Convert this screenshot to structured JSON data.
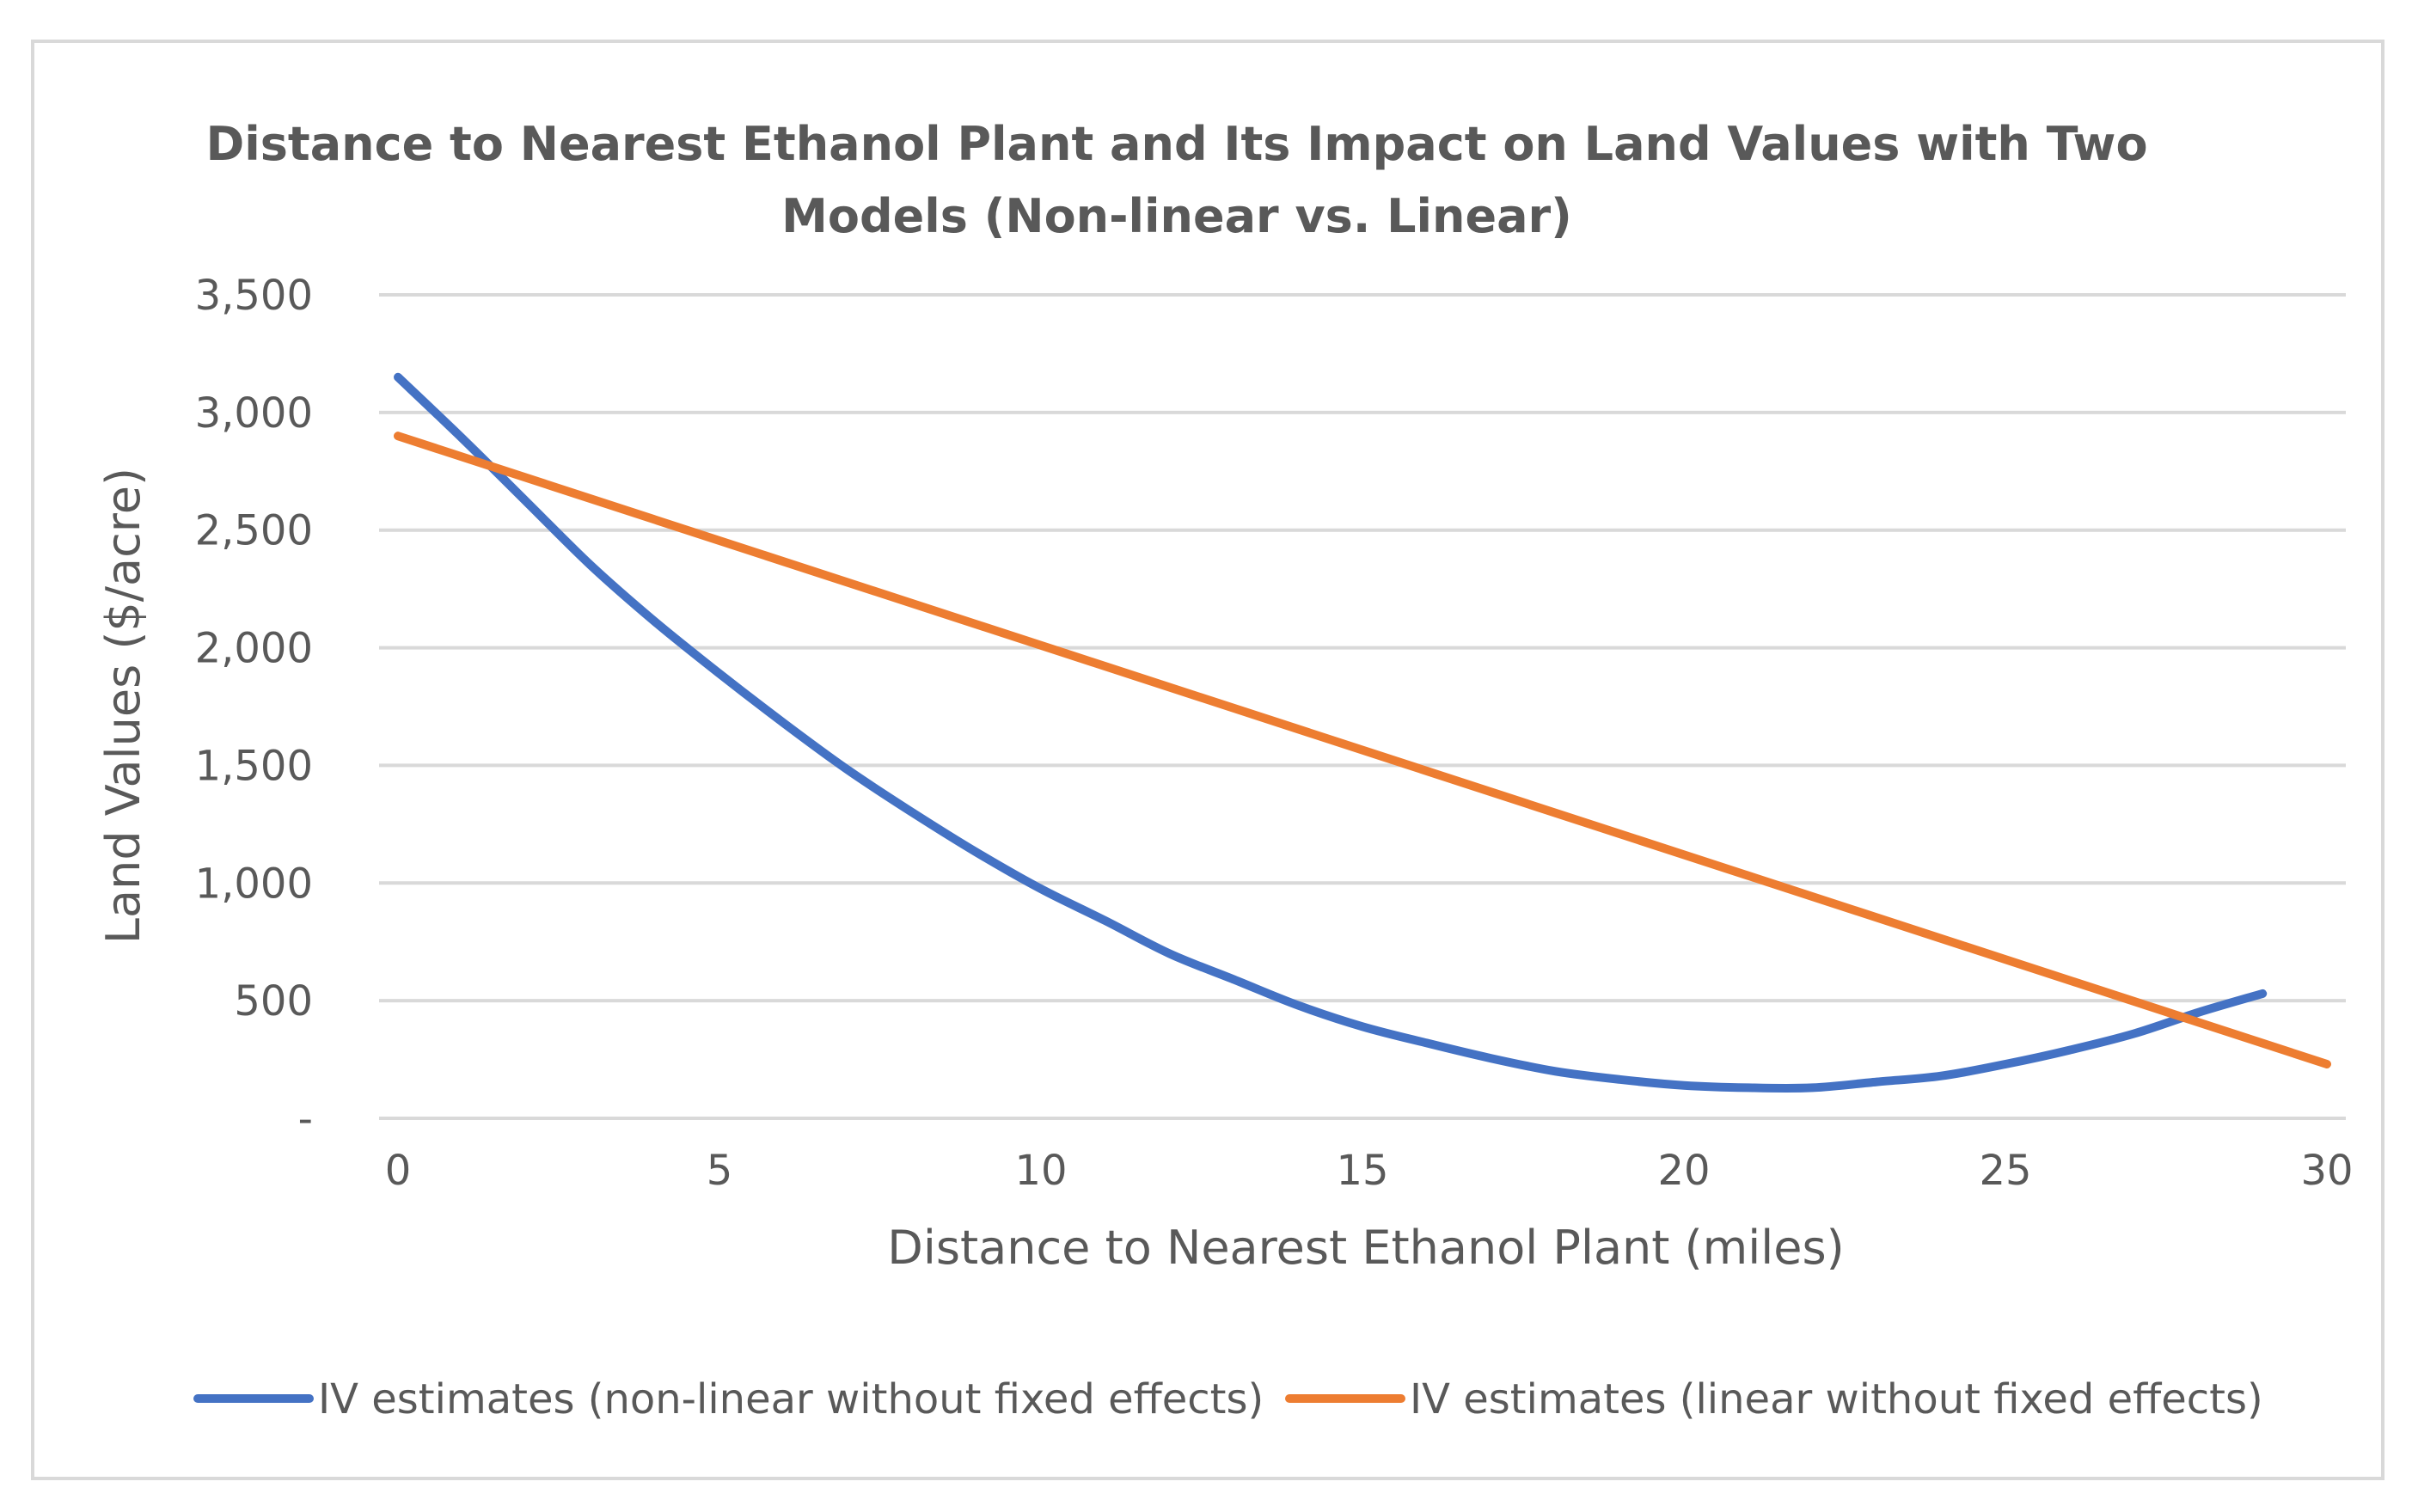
{
  "chart_data": {
    "type": "line",
    "title_lines": [
      "Distance to Nearest Ethanol Plant and Its Impact on Land Values with Two",
      "Models (Non-linear vs. Linear)"
    ],
    "xlabel": "Distance to Nearest Ethanol Plant (miles)",
    "ylabel": "Land Values ($/acre)",
    "xlim": [
      0,
      30
    ],
    "ylim": [
      0,
      3500
    ],
    "x_ticks": [
      0,
      5,
      10,
      15,
      20,
      25,
      30
    ],
    "x_tick_labels": [
      "0",
      "5",
      "10",
      "15",
      "20",
      "25",
      "30"
    ],
    "y_ticks": [
      0,
      500,
      1000,
      1500,
      2000,
      2500,
      3000,
      3500
    ],
    "y_tick_labels": [
      "-",
      "500",
      "1,000",
      "1,500",
      "2,000",
      "2,500",
      "3,000",
      "3,500"
    ],
    "grid": true,
    "legend_position": "bottom",
    "series": [
      {
        "name": "IV estimates (non-linear without fixed effects)",
        "color": "#4472c4",
        "x": [
          0,
          1,
          2,
          3,
          4,
          5,
          6,
          7,
          8,
          9,
          10,
          11,
          12,
          13,
          14,
          15,
          16,
          17,
          18,
          19,
          20,
          21,
          22,
          23,
          24,
          25,
          26,
          27,
          28,
          29
        ],
        "y": [
          3150,
          2890,
          2620,
          2350,
          2110,
          1890,
          1680,
          1480,
          1300,
          1130,
          975,
          840,
          700,
          590,
          480,
          390,
          320,
          255,
          200,
          165,
          140,
          130,
          130,
          155,
          180,
          230,
          290,
          360,
          450,
          530
        ]
      },
      {
        "name": "IV estimates (linear without fixed effects)",
        "color": "#ed7d31",
        "x": [
          0,
          30
        ],
        "y": [
          2900,
          230
        ]
      }
    ]
  }
}
